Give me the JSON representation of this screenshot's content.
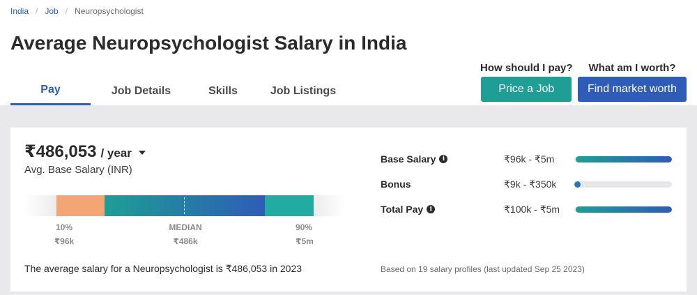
{
  "breadcrumb": {
    "items": [
      "India",
      "Job",
      "Neuropsychologist"
    ]
  },
  "page_title": "Average Neuropsychologist Salary in India",
  "tabs": [
    {
      "label": "Pay",
      "active": true
    },
    {
      "label": "Job Details",
      "active": false
    },
    {
      "label": "Skills",
      "active": false
    },
    {
      "label": "Job Listings",
      "active": false
    }
  ],
  "cta": {
    "price": {
      "question": "How should I pay?",
      "button": "Price a Job"
    },
    "worth": {
      "question": "What am I worth?",
      "button": "Find market worth"
    }
  },
  "salary": {
    "value": "₹486,053",
    "period": "/ year",
    "subtitle": "Avg. Base Salary (INR)"
  },
  "distribution": {
    "p10_label": "10%",
    "median_label": "MEDIAN",
    "p90_label": "90%",
    "p10_value": "₹96k",
    "median_value": "₹486k",
    "p90_value": "₹5m"
  },
  "breakdown": [
    {
      "label": "Base Salary",
      "range": "₹96k - ₹5m",
      "has_info": true
    },
    {
      "label": "Bonus",
      "range": "₹9k - ₹350k",
      "has_info": false
    },
    {
      "label": "Total Pay",
      "range": "₹100k - ₹5m",
      "has_info": true
    }
  ],
  "avg_sentence": "The average salary for a Neuropsychologist is ₹486,053 in 2023",
  "footnote": "Based on 19 salary profiles (last updated Sep 25 2023)",
  "icons": {
    "info": "info-icon",
    "caret": "caret-down-icon"
  },
  "colors": {
    "accent_blue": "#2e5cb8",
    "accent_teal": "#1e9e94",
    "low_range": "#f4a574"
  }
}
